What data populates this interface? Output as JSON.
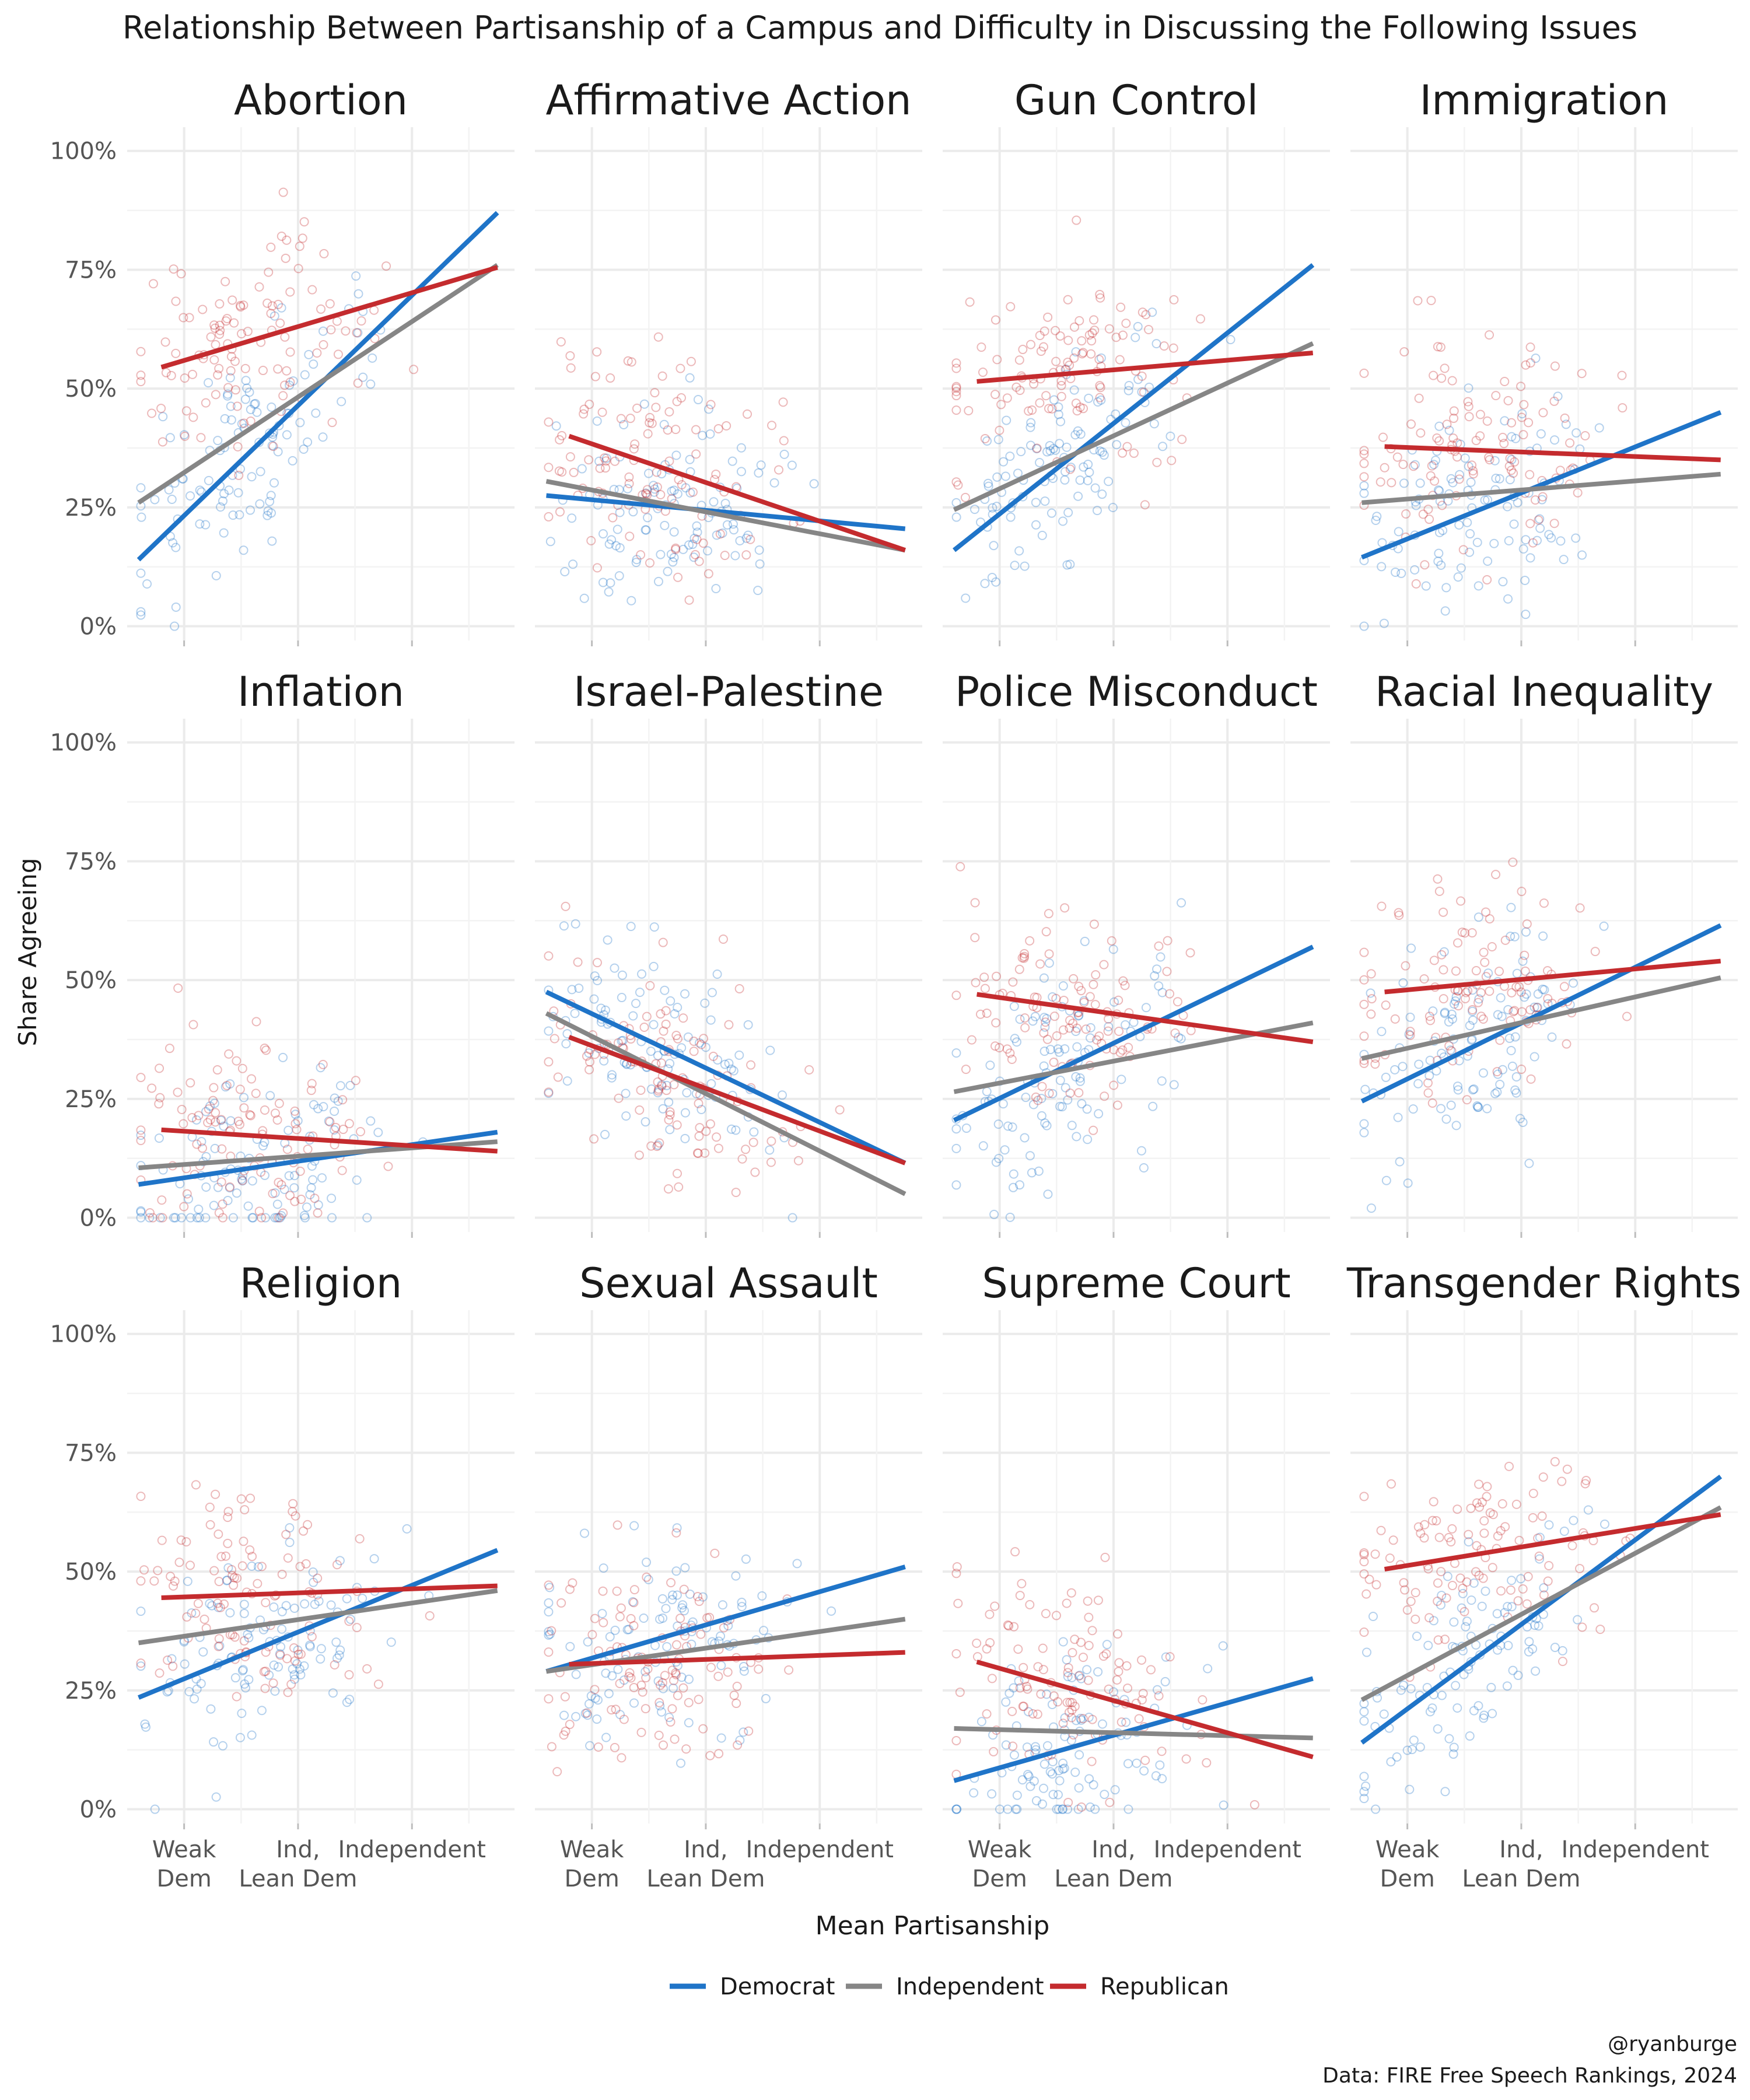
{
  "title": "Relationship Between Partisanship of a Campus and Difficulty in Discussing the Following Issues",
  "xlabel": "Mean Partisanship",
  "ylabel": "Share Agreeing",
  "caption_line1": "@ryanburge",
  "caption_line2": "Data: FIRE Free Speech Rankings, 2024",
  "colors": {
    "Democrat": "#1f74c8",
    "Independent": "#868686",
    "Republican": "#c42b2e",
    "grid": "#ebebeb",
    "text": "#1a1a1a",
    "tick": "#555555"
  },
  "chart_data": {
    "type": "scatter",
    "facet_layout": {
      "rows": 3,
      "cols": 4
    },
    "xlim": [
      1.5,
      4.9
    ],
    "ylim": [
      -0.03,
      1.05
    ],
    "x_tick_labels": [
      {
        "x": 2,
        "label": "Weak\nDem"
      },
      {
        "x": 3,
        "label": "Ind,\nLean Dem"
      },
      {
        "x": 4,
        "label": "Independent"
      }
    ],
    "y_ticks": [
      0,
      0.25,
      0.5,
      0.75,
      1.0
    ],
    "y_tick_labels": [
      "0%",
      "25%",
      "50%",
      "75%",
      "100%"
    ],
    "legend": {
      "position": "bottom",
      "entries": [
        "Democrat",
        "Independent",
        "Republican"
      ]
    },
    "grid": true,
    "series": [
      "Democrat",
      "Independent",
      "Republican"
    ],
    "facets": [
      {
        "title": "Abortion",
        "fit_lines": {
          "Democrat": {
            "x": [
              1.6,
              4.75
            ],
            "y": [
              0.14,
              0.87
            ]
          },
          "Independent": {
            "x": [
              1.6,
              4.75
            ],
            "y": [
              0.26,
              0.76
            ]
          },
          "Republican": {
            "x": [
              1.8,
              4.75
            ],
            "y": [
              0.545,
              0.755
            ]
          }
        }
      },
      {
        "title": "Affirmative Action",
        "fit_lines": {
          "Democrat": {
            "x": [
              1.6,
              4.75
            ],
            "y": [
              0.275,
              0.205
            ]
          },
          "Independent": {
            "x": [
              1.6,
              4.75
            ],
            "y": [
              0.305,
              0.16
            ]
          },
          "Republican": {
            "x": [
              1.8,
              4.75
            ],
            "y": [
              0.4,
              0.16
            ]
          }
        }
      },
      {
        "title": "Gun Control",
        "fit_lines": {
          "Democrat": {
            "x": [
              1.6,
              4.75
            ],
            "y": [
              0.16,
              0.76
            ]
          },
          "Independent": {
            "x": [
              1.6,
              4.75
            ],
            "y": [
              0.245,
              0.595
            ]
          },
          "Republican": {
            "x": [
              1.8,
              4.75
            ],
            "y": [
              0.515,
              0.575
            ]
          }
        }
      },
      {
        "title": "Immigration",
        "fit_lines": {
          "Democrat": {
            "x": [
              1.6,
              4.75
            ],
            "y": [
              0.145,
              0.45
            ]
          },
          "Independent": {
            "x": [
              1.6,
              4.75
            ],
            "y": [
              0.26,
              0.32
            ]
          },
          "Republican": {
            "x": [
              1.8,
              4.75
            ],
            "y": [
              0.378,
              0.35
            ]
          }
        }
      },
      {
        "title": "Inflation",
        "fit_lines": {
          "Democrat": {
            "x": [
              1.6,
              4.75
            ],
            "y": [
              0.07,
              0.18
            ]
          },
          "Independent": {
            "x": [
              1.6,
              4.75
            ],
            "y": [
              0.105,
              0.16
            ]
          },
          "Republican": {
            "x": [
              1.8,
              4.75
            ],
            "y": [
              0.185,
              0.14
            ]
          }
        }
      },
      {
        "title": "Israel-Palestine",
        "fit_lines": {
          "Democrat": {
            "x": [
              1.6,
              4.75
            ],
            "y": [
              0.475,
              0.115
            ]
          },
          "Independent": {
            "x": [
              1.6,
              4.75
            ],
            "y": [
              0.43,
              0.05
            ]
          },
          "Republican": {
            "x": [
              1.8,
              4.75
            ],
            "y": [
              0.38,
              0.115
            ]
          }
        }
      },
      {
        "title": "Police Misconduct",
        "fit_lines": {
          "Democrat": {
            "x": [
              1.6,
              4.75
            ],
            "y": [
              0.205,
              0.57
            ]
          },
          "Independent": {
            "x": [
              1.6,
              4.75
            ],
            "y": [
              0.265,
              0.41
            ]
          },
          "Republican": {
            "x": [
              1.8,
              4.75
            ],
            "y": [
              0.47,
              0.37
            ]
          }
        }
      },
      {
        "title": "Racial Inequality",
        "fit_lines": {
          "Democrat": {
            "x": [
              1.6,
              4.75
            ],
            "y": [
              0.245,
              0.615
            ]
          },
          "Independent": {
            "x": [
              1.6,
              4.75
            ],
            "y": [
              0.335,
              0.505
            ]
          },
          "Republican": {
            "x": [
              1.8,
              4.75
            ],
            "y": [
              0.475,
              0.54
            ]
          }
        }
      },
      {
        "title": "Religion",
        "fit_lines": {
          "Democrat": {
            "x": [
              1.6,
              4.75
            ],
            "y": [
              0.235,
              0.545
            ]
          },
          "Independent": {
            "x": [
              1.6,
              4.75
            ],
            "y": [
              0.35,
              0.46
            ]
          },
          "Republican": {
            "x": [
              1.8,
              4.75
            ],
            "y": [
              0.445,
              0.47
            ]
          }
        }
      },
      {
        "title": "Sexual Assault",
        "fit_lines": {
          "Democrat": {
            "x": [
              1.6,
              4.75
            ],
            "y": [
              0.29,
              0.51
            ]
          },
          "Independent": {
            "x": [
              1.6,
              4.75
            ],
            "y": [
              0.29,
              0.4
            ]
          },
          "Republican": {
            "x": [
              1.8,
              4.75
            ],
            "y": [
              0.305,
              0.33
            ]
          }
        }
      },
      {
        "title": "Supreme Court",
        "fit_lines": {
          "Democrat": {
            "x": [
              1.6,
              4.75
            ],
            "y": [
              0.06,
              0.275
            ]
          },
          "Independent": {
            "x": [
              1.6,
              4.75
            ],
            "y": [
              0.17,
              0.15
            ]
          },
          "Republican": {
            "x": [
              1.8,
              4.75
            ],
            "y": [
              0.31,
              0.11
            ]
          }
        }
      },
      {
        "title": "Transgender Rights",
        "fit_lines": {
          "Democrat": {
            "x": [
              1.6,
              4.75
            ],
            "y": [
              0.14,
              0.7
            ]
          },
          "Independent": {
            "x": [
              1.6,
              4.75
            ],
            "y": [
              0.23,
              0.635
            ]
          },
          "Republican": {
            "x": [
              1.8,
              4.75
            ],
            "y": [
              0.505,
              0.62
            ]
          }
        }
      }
    ]
  }
}
